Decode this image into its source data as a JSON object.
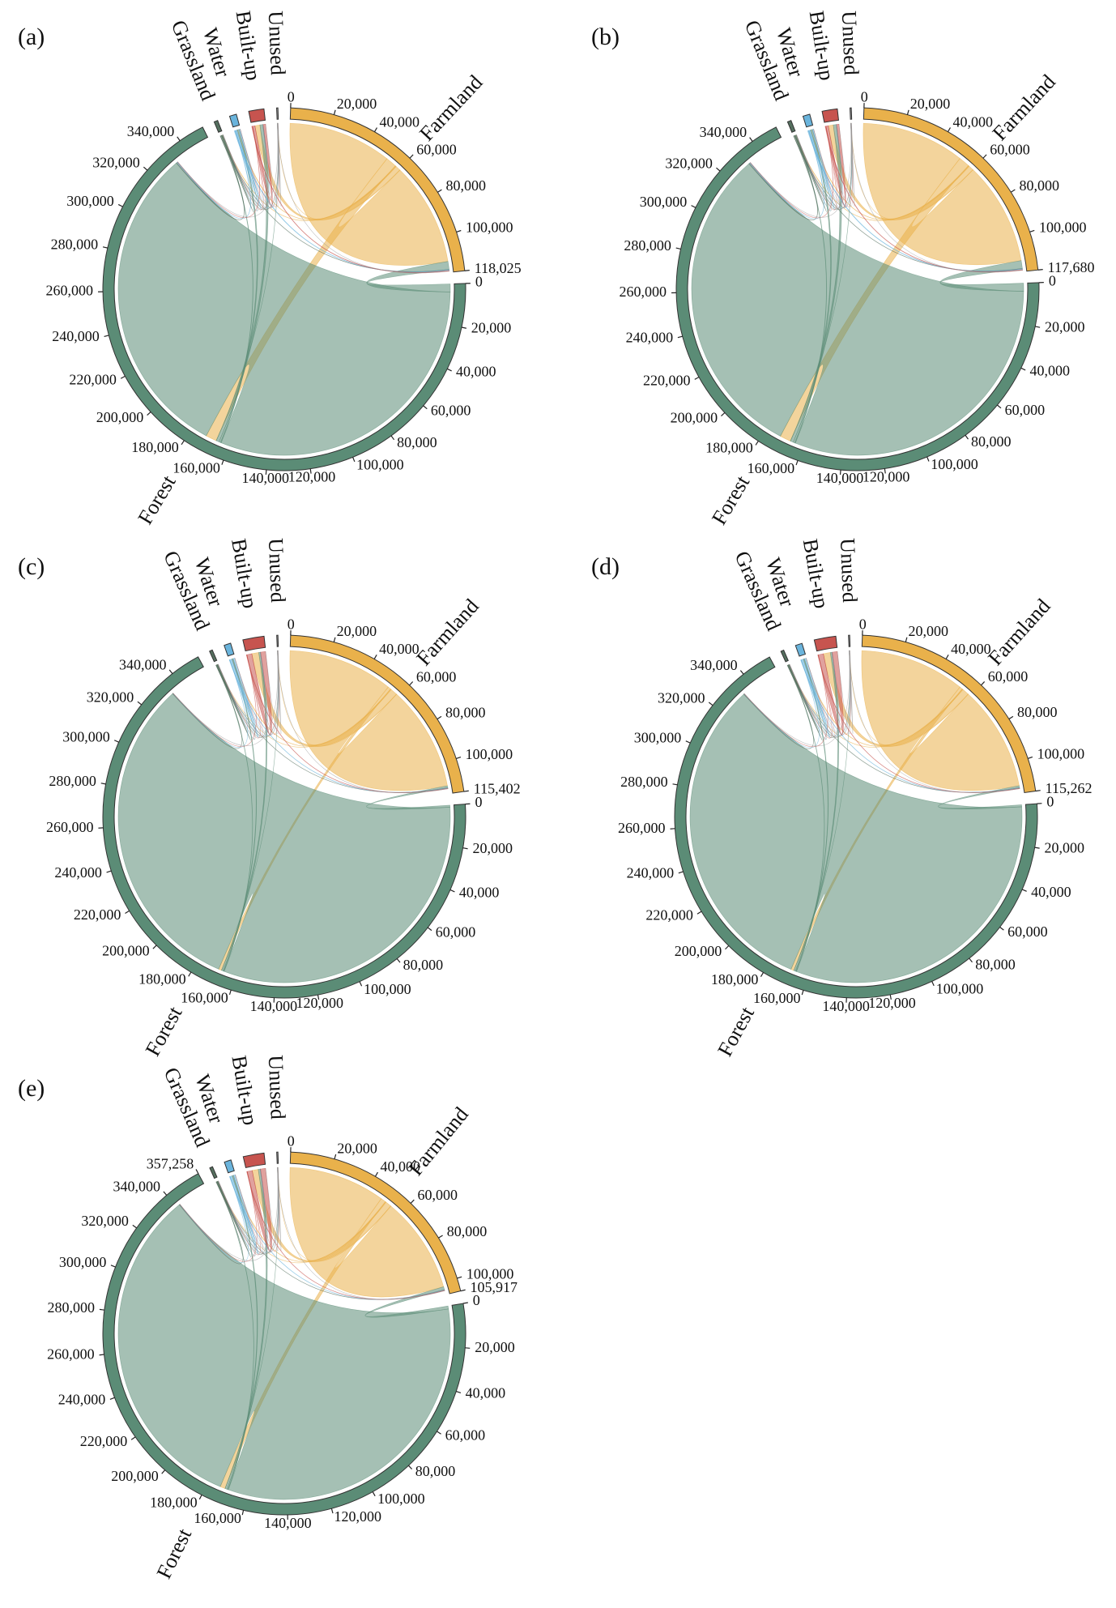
{
  "chart_data": [
    {
      "type": "chord",
      "label": "(a)",
      "groups": [
        {
          "name": "Farmland",
          "color": "#e9b14b",
          "size": 118025,
          "ticks": [
            0,
            {
              "value": 20000,
              "label": "20,000"
            },
            {
              "value": 40000,
              "label": "40,000"
            },
            {
              "value": 60000,
              "label": "60,000"
            },
            {
              "value": 80000,
              "label": "80,000"
            },
            {
              "value": 100000,
              "label": "100,000"
            },
            {
              "value": 118025,
              "label": "118,025"
            }
          ]
        },
        {
          "name": "Forest",
          "color": "#5b8c76",
          "size": 352000,
          "ticks": [
            0,
            {
              "value": 20000,
              "label": "20,000"
            },
            {
              "value": 40000,
              "label": "40,000"
            },
            {
              "value": 60000,
              "label": "60,000"
            },
            {
              "value": 80000,
              "label": "80,000"
            },
            {
              "value": 100000,
              "label": "100,000"
            },
            {
              "value": 120000,
              "label": "120,000"
            },
            {
              "value": 140000,
              "label": "140,000"
            },
            {
              "value": 160000,
              "label": "160,000"
            },
            {
              "value": 180000,
              "label": "180,000"
            },
            {
              "value": 200000,
              "label": "200,000"
            },
            {
              "value": 220000,
              "label": "220,000"
            },
            {
              "value": 240000,
              "label": "240,000"
            },
            {
              "value": 260000,
              "label": "260,000"
            },
            {
              "value": 280000,
              "label": "280,000"
            },
            {
              "value": 300000,
              "label": "300,000"
            },
            {
              "value": 320000,
              "label": "320,000"
            },
            {
              "value": 340000,
              "label": "340,000"
            }
          ]
        },
        {
          "name": "Grassland",
          "color": "#55705f",
          "size": 1700
        },
        {
          "name": "Water",
          "color": "#6ab4dc",
          "size": 3200
        },
        {
          "name": "Built-up",
          "color": "#c7544f",
          "size": 7000
        },
        {
          "name": "Unused",
          "color": "#9a9a9a",
          "size": 600
        }
      ],
      "matrix": [
        [
          52000,
          5500,
          200,
          300,
          2500,
          50
        ],
        [
          4000,
          160000,
          300,
          800,
          1500,
          50
        ],
        [
          150,
          500,
          200,
          0,
          50,
          0
        ],
        [
          400,
          300,
          0,
          600,
          100,
          0
        ],
        [
          300,
          100,
          0,
          0,
          1200,
          0
        ],
        [
          20,
          30,
          0,
          0,
          20,
          150
        ]
      ]
    },
    {
      "type": "chord",
      "label": "(b)",
      "groups": [
        {
          "name": "Farmland",
          "color": "#e9b14b",
          "size": 117680,
          "ticks": [
            0,
            {
              "value": 20000,
              "label": "20,000"
            },
            {
              "value": 40000,
              "label": "40,000"
            },
            {
              "value": 60000,
              "label": "60,000"
            },
            {
              "value": 80000,
              "label": "80,000"
            },
            {
              "value": 100000,
              "label": "100,000"
            },
            {
              "value": 117680,
              "label": "117,680"
            }
          ]
        },
        {
          "name": "Forest",
          "color": "#5b8c76",
          "size": 352500,
          "ticks": [
            0,
            {
              "value": 20000,
              "label": "20,000"
            },
            {
              "value": 40000,
              "label": "40,000"
            },
            {
              "value": 60000,
              "label": "60,000"
            },
            {
              "value": 80000,
              "label": "80,000"
            },
            {
              "value": 100000,
              "label": "100,000"
            },
            {
              "value": 120000,
              "label": "120,000"
            },
            {
              "value": 140000,
              "label": "140,000"
            },
            {
              "value": 160000,
              "label": "160,000"
            },
            {
              "value": 180000,
              "label": "180,000"
            },
            {
              "value": 200000,
              "label": "200,000"
            },
            {
              "value": 220000,
              "label": "220,000"
            },
            {
              "value": 240000,
              "label": "240,000"
            },
            {
              "value": 260000,
              "label": "260,000"
            },
            {
              "value": 280000,
              "label": "280,000"
            },
            {
              "value": 300000,
              "label": "300,000"
            },
            {
              "value": 320000,
              "label": "320,000"
            },
            {
              "value": 340000,
              "label": "340,000"
            }
          ]
        },
        {
          "name": "Grassland",
          "color": "#55705f",
          "size": 1700
        },
        {
          "name": "Water",
          "color": "#6ab4dc",
          "size": 3200
        },
        {
          "name": "Built-up",
          "color": "#c7544f",
          "size": 7000
        },
        {
          "name": "Unused",
          "color": "#9a9a9a",
          "size": 600
        }
      ],
      "matrix": [
        [
          51800,
          5500,
          200,
          300,
          2500,
          50
        ],
        [
          4000,
          160000,
          300,
          800,
          1500,
          50
        ],
        [
          150,
          500,
          200,
          0,
          50,
          0
        ],
        [
          400,
          300,
          0,
          600,
          100,
          0
        ],
        [
          300,
          100,
          0,
          0,
          1200,
          0
        ],
        [
          20,
          30,
          0,
          0,
          20,
          150
        ]
      ]
    },
    {
      "type": "chord",
      "label": "(c)",
      "groups": [
        {
          "name": "Farmland",
          "color": "#e9b14b",
          "size": 115402,
          "ticks": [
            0,
            {
              "value": 20000,
              "label": "20,000"
            },
            {
              "value": 40000,
              "label": "40,000"
            },
            {
              "value": 60000,
              "label": "60,000"
            },
            {
              "value": 80000,
              "label": "80,000"
            },
            {
              "value": 100000,
              "label": "100,000"
            },
            {
              "value": 115402,
              "label": "115,402"
            }
          ]
        },
        {
          "name": "Forest",
          "color": "#5b8c76",
          "size": 354000,
          "ticks": [
            0,
            {
              "value": 20000,
              "label": "20,000"
            },
            {
              "value": 40000,
              "label": "40,000"
            },
            {
              "value": 60000,
              "label": "60,000"
            },
            {
              "value": 80000,
              "label": "80,000"
            },
            {
              "value": 100000,
              "label": "100,000"
            },
            {
              "value": 120000,
              "label": "120,000"
            },
            {
              "value": 140000,
              "label": "140,000"
            },
            {
              "value": 160000,
              "label": "160,000"
            },
            {
              "value": 180000,
              "label": "180,000"
            },
            {
              "value": 200000,
              "label": "200,000"
            },
            {
              "value": 220000,
              "label": "220,000"
            },
            {
              "value": 240000,
              "label": "240,000"
            },
            {
              "value": 260000,
              "label": "260,000"
            },
            {
              "value": 280000,
              "label": "280,000"
            },
            {
              "value": 300000,
              "label": "300,000"
            },
            {
              "value": 320000,
              "label": "320,000"
            },
            {
              "value": 340000,
              "label": "340,000"
            }
          ]
        },
        {
          "name": "Grassland",
          "color": "#55705f",
          "size": 1400
        },
        {
          "name": "Water",
          "color": "#6ab4dc",
          "size": 3100
        },
        {
          "name": "Built-up",
          "color": "#c7544f",
          "size": 9800
        },
        {
          "name": "Unused",
          "color": "#9a9a9a",
          "size": 550
        }
      ],
      "matrix": [
        [
          53000,
          1500,
          100,
          300,
          3500,
          50
        ],
        [
          1000,
          165000,
          200,
          400,
          800,
          30
        ],
        [
          100,
          200,
          300,
          0,
          50,
          0
        ],
        [
          200,
          100,
          0,
          900,
          100,
          0
        ],
        [
          200,
          50,
          0,
          0,
          2500,
          0
        ],
        [
          10,
          20,
          0,
          0,
          10,
          150
        ]
      ]
    },
    {
      "type": "chord",
      "label": "(d)",
      "groups": [
        {
          "name": "Farmland",
          "color": "#e9b14b",
          "size": 115262,
          "ticks": [
            0,
            {
              "value": 20000,
              "label": "20,000"
            },
            {
              "value": 40000,
              "label": "40,000"
            },
            {
              "value": 60000,
              "label": "60,000"
            },
            {
              "value": 80000,
              "label": "80,000"
            },
            {
              "value": 100000,
              "label": "100,000"
            },
            {
              "value": 115262,
              "label": "115,262"
            }
          ]
        },
        {
          "name": "Forest",
          "color": "#5b8c76",
          "size": 354200,
          "ticks": [
            0,
            {
              "value": 20000,
              "label": "20,000"
            },
            {
              "value": 40000,
              "label": "40,000"
            },
            {
              "value": 60000,
              "label": "60,000"
            },
            {
              "value": 80000,
              "label": "80,000"
            },
            {
              "value": 100000,
              "label": "100,000"
            },
            {
              "value": 120000,
              "label": "120,000"
            },
            {
              "value": 140000,
              "label": "140,000"
            },
            {
              "value": 160000,
              "label": "160,000"
            },
            {
              "value": 180000,
              "label": "180,000"
            },
            {
              "value": 200000,
              "label": "200,000"
            },
            {
              "value": 220000,
              "label": "220,000"
            },
            {
              "value": 240000,
              "label": "240,000"
            },
            {
              "value": 260000,
              "label": "260,000"
            },
            {
              "value": 280000,
              "label": "280,000"
            },
            {
              "value": 300000,
              "label": "300,000"
            },
            {
              "value": 320000,
              "label": "320,000"
            },
            {
              "value": 340000,
              "label": "340,000"
            }
          ]
        },
        {
          "name": "Grassland",
          "color": "#55705f",
          "size": 1400
        },
        {
          "name": "Water",
          "color": "#6ab4dc",
          "size": 3100
        },
        {
          "name": "Built-up",
          "color": "#c7544f",
          "size": 10000
        },
        {
          "name": "Unused",
          "color": "#9a9a9a",
          "size": 550
        }
      ],
      "matrix": [
        [
          53000,
          1500,
          100,
          300,
          3500,
          50
        ],
        [
          1000,
          165000,
          200,
          400,
          800,
          30
        ],
        [
          100,
          200,
          300,
          0,
          50,
          0
        ],
        [
          200,
          100,
          0,
          900,
          100,
          0
        ],
        [
          200,
          50,
          0,
          0,
          2600,
          0
        ],
        [
          10,
          20,
          0,
          0,
          10,
          150
        ]
      ]
    },
    {
      "type": "chord",
      "label": "(e)",
      "groups": [
        {
          "name": "Farmland",
          "color": "#e9b14b",
          "size": 105917,
          "ticks": [
            0,
            {
              "value": 20000,
              "label": "20,000"
            },
            {
              "value": 40000,
              "label": "40,000"
            },
            {
              "value": 60000,
              "label": "60,000"
            },
            {
              "value": 80000,
              "label": "80,000"
            },
            {
              "value": 100000,
              "label": "100,000"
            },
            {
              "value": 105917,
              "label": "105,917"
            }
          ]
        },
        {
          "name": "Forest",
          "color": "#5b8c76",
          "size": 357258,
          "ticks": [
            0,
            {
              "value": 20000,
              "label": "20,000"
            },
            {
              "value": 40000,
              "label": "40,000"
            },
            {
              "value": 60000,
              "label": "60,000"
            },
            {
              "value": 80000,
              "label": "80,000"
            },
            {
              "value": 100000,
              "label": "100,000"
            },
            {
              "value": 120000,
              "label": "120,000"
            },
            {
              "value": 140000,
              "label": "140,000"
            },
            {
              "value": 160000,
              "label": "160,000"
            },
            {
              "value": 180000,
              "label": "180,000"
            },
            {
              "value": 200000,
              "label": "200,000"
            },
            {
              "value": 220000,
              "label": "220,000"
            },
            {
              "value": 240000,
              "label": "240,000"
            },
            {
              "value": 260000,
              "label": "260,000"
            },
            {
              "value": 280000,
              "label": "280,000"
            },
            {
              "value": 300000,
              "label": "300,000"
            },
            {
              "value": 320000,
              "label": "320,000"
            },
            {
              "value": 340000,
              "label": "340,000"
            },
            {
              "value": 357258,
              "label": "357,258"
            }
          ]
        },
        {
          "name": "Grassland",
          "color": "#55705f",
          "size": 1400
        },
        {
          "name": "Water",
          "color": "#6ab4dc",
          "size": 3100
        },
        {
          "name": "Built-up",
          "color": "#c7544f",
          "size": 9500
        },
        {
          "name": "Unused",
          "color": "#9a9a9a",
          "size": 550
        }
      ],
      "matrix": [
        [
          48000,
          2500,
          100,
          300,
          3000,
          50
        ],
        [
          1500,
          168000,
          200,
          500,
          1000,
          30
        ],
        [
          100,
          200,
          300,
          0,
          50,
          0
        ],
        [
          200,
          100,
          0,
          900,
          100,
          0
        ],
        [
          200,
          50,
          0,
          0,
          2500,
          0
        ],
        [
          10,
          20,
          0,
          0,
          10,
          150
        ]
      ]
    }
  ]
}
